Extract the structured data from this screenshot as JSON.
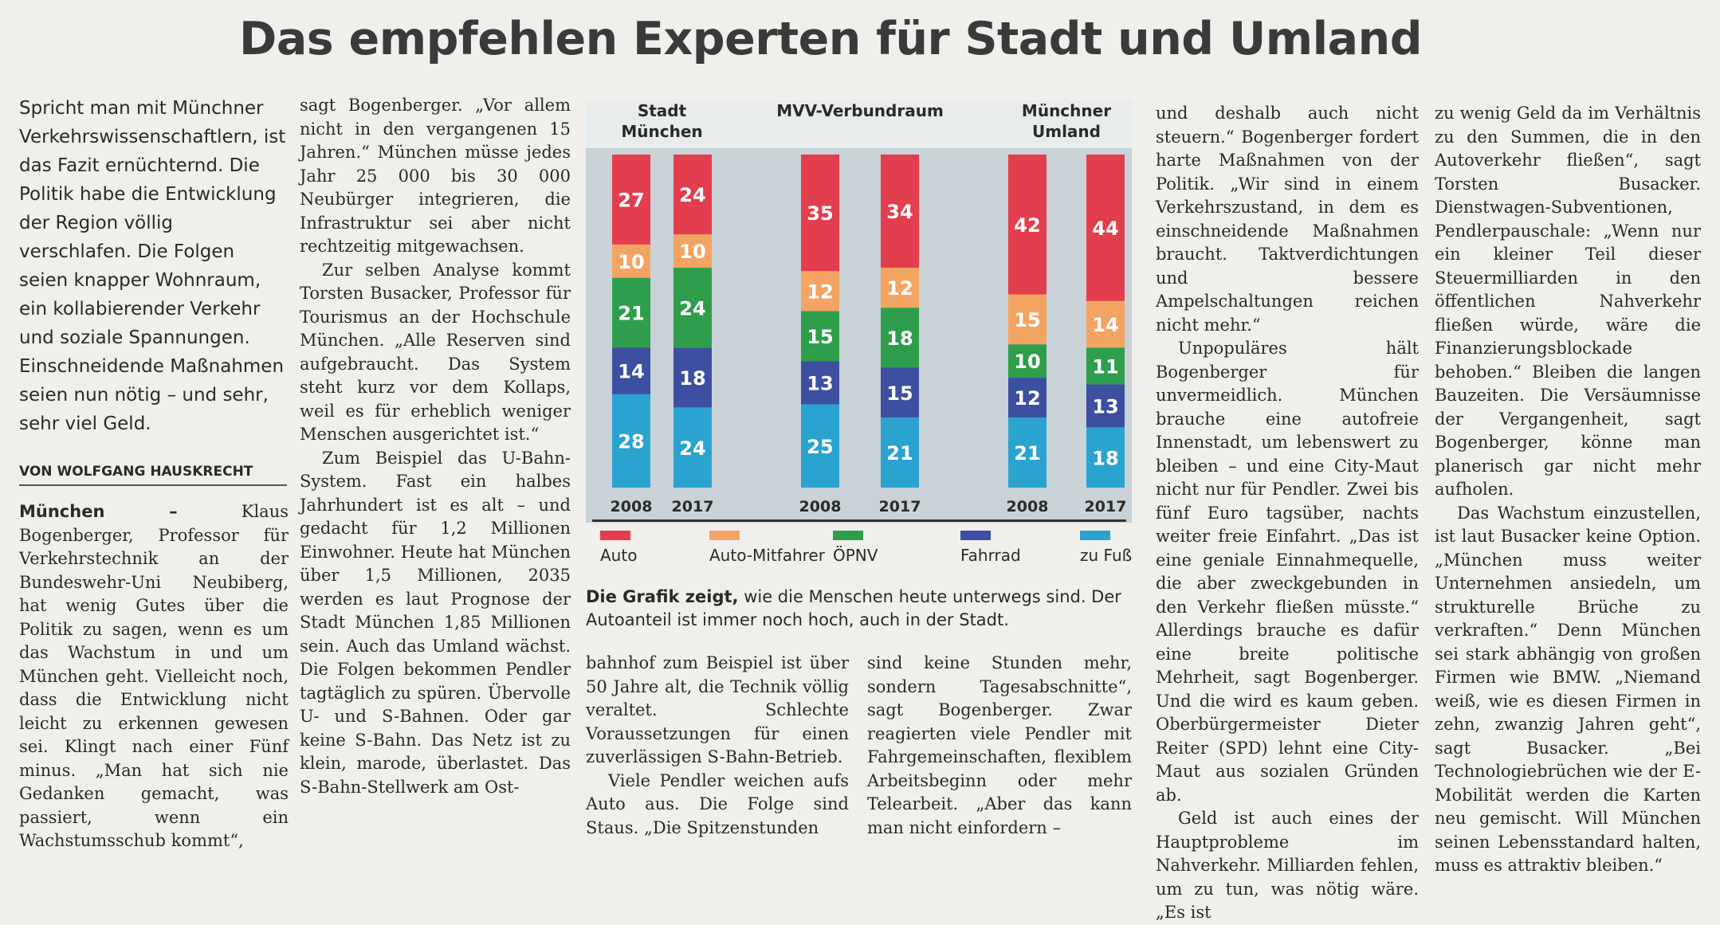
{
  "headline": "Das empfehlen Experten für Stadt und Umland",
  "teaser": "Spricht man mit Münchner Verkehrswissenschaftlern, ist das Fazit ernüchternd. Die Politik habe die Entwicklung der Region völlig verschlafen. Die Folgen seien knapper Wohnraum, ein kollabierender Verkehr und soziale Spannungen. Einschneidende Maßnahmen seien nun nötig – und sehr, sehr viel Geld.",
  "byline": "VON WOLFGANG HAUSKRECHT",
  "col1": {
    "dateline": "München –",
    "text": " Klaus Bogenberger, Professor für Verkehrstechnik an der Bundeswehr-Uni Neubiberg, hat wenig Gutes über die Politik zu sagen, wenn es um das Wachstum in und um München geht. Vielleicht noch, dass die Entwicklung nicht leicht zu erkennen gewesen sei. Klingt nach einer Fünf minus. „Man hat sich nie Gedanken gemacht, was passiert, wenn ein Wachstumsschub kommt“,"
  },
  "col2": [
    "sagt Bogenberger. „Vor allem nicht in den vergangenen 15 Jahren.“ München müsse jedes Jahr 25 000 bis 30 000 Neubürger integrieren, die Infrastruktur sei aber nicht rechtzeitig mitgewachsen.",
    "Zur selben Analyse kommt Torsten Busacker, Professor für Tourismus an der Hochschule München. „Alle Reserven sind aufgebraucht. Das System steht kurz vor dem Kollaps, weil es für erheblich weniger Menschen ausgerichtet ist.“",
    "Zum Beispiel das U-Bahn-System. Fast ein halbes Jahrhundert ist es alt – und gedacht für 1,2 Millionen Einwohner. Heute hat München über 1,5 Millionen, 2035 werden es laut Prognose der Stadt München 1,85 Millionen sein. Auch das Umland wächst. Die Folgen bekommen Pendler tagtäglich zu spüren. Übervolle U- und S-Bahnen. Oder gar keine S-Bahn. Das Netz ist zu klein, marode, überlastet. Das S-Bahn-Stellwerk am Ost-"
  ],
  "col3": [
    "bahnhof zum Beispiel ist über 50 Jahre alt, die Technik völlig veraltet. Schlechte Voraussetzungen für einen zuverlässigen S-Bahn-Betrieb.",
    "Viele Pendler weichen aufs Auto aus. Die Folge sind Staus. „Die Spitzenstunden"
  ],
  "col4": [
    "sind keine Stunden mehr, sondern Tagesabschnitte“, sagt Bogenberger. Zwar reagierten viele Pendler mit Fahrgemeinschaften, flexiblem Arbeitsbeginn oder mehr Telearbeit. „Aber das kann man nicht einfordern –"
  ],
  "col5": [
    "und deshalb auch nicht steuern.“ Bogenberger fordert harte Maßnahmen von der Politik. „Wir sind in einem Verkehrszustand, in dem es einschneidende Maßnahmen braucht. Taktverdichtungen und bessere Ampelschaltungen reichen nicht mehr.“",
    "Unpopuläres hält Bogenberger für unvermeidlich. München brauche eine autofreie Innenstadt, um lebenswert zu bleiben – und eine City-Maut nicht nur für Pendler. Zwei bis fünf Euro tagsüber, nachts weiter freie Einfahrt. „Das ist eine geniale Einnahmequelle, die aber zweckgebunden in den Verkehr fließen müsste.“ Allerdings brauche es dafür eine breite politische Mehrheit, sagt Bogenberger. Und die wird es kaum geben. Oberbürgermeister Dieter Reiter (SPD) lehnt eine City-Maut aus sozialen Gründen ab.",
    "Geld ist auch eines der Hauptprobleme im Nahverkehr. Milliarden fehlen, um zu tun, was nötig wäre. „Es ist"
  ],
  "col6": [
    "zu wenig Geld da im Verhältnis zu den Summen, die in den Autoverkehr fließen“, sagt Torsten Busacker. Dienstwagen-Subventionen, Pendlerpauschale: „Wenn nur ein kleiner Teil dieser Steuermilliarden in den öffentlichen Nahverkehr fließen würde, wäre die Finanzierungsblockade behoben.“ Bleiben die langen Bauzeiten. Die Versäumnisse der Vergangenheit, sagt Bogenberger, könne man planerisch gar nicht mehr aufholen.",
    "Das Wachstum einzustellen, ist laut Busacker keine Option. „München muss weiter Unternehmen ansiedeln, um strukturelle Brüche zu verkraften.“ Denn München sei stark abhängig von großen Firmen wie BMW. „Niemand weiß, wie es diesen Firmen in zehn, zwanzig Jahren geht“, sagt Busacker. „Bei Technologiebrüchen wie der E-Mobilität werden die Karten neu gemischt. Will München seinen Lebensstandard halten, muss es attraktiv bleiben.“"
  ],
  "caption": {
    "lead": "Die Grafik zeigt,",
    "text": " wie die Menschen heute unterwegs sind. Der Autoanteil ist immer noch hoch, auch in der Stadt."
  },
  "chart_data": {
    "type": "bar",
    "stacked": true,
    "groups": [
      {
        "label": "Stadt München",
        "years": [
          "2008",
          "2017"
        ]
      },
      {
        "label": "MVV-Verbundraum",
        "years": [
          "2008",
          "2017"
        ]
      },
      {
        "label": "Münchner Umland",
        "years": [
          "2008",
          "2017"
        ]
      }
    ],
    "categories": [
      "2008",
      "2017",
      "2008",
      "2017",
      "2008",
      "2017"
    ],
    "series": [
      {
        "name": "Auto",
        "color": "#e23e4e",
        "values": [
          27,
          24,
          35,
          34,
          42,
          44
        ]
      },
      {
        "name": "Auto-Mitfahrer",
        "color": "#f4a462",
        "values": [
          10,
          10,
          12,
          12,
          15,
          14
        ]
      },
      {
        "name": "ÖPNV",
        "color": "#2f9e4c",
        "values": [
          21,
          24,
          15,
          18,
          10,
          11
        ]
      },
      {
        "name": "Fahrrad",
        "color": "#3d4fa0",
        "values": [
          14,
          18,
          13,
          15,
          12,
          13
        ]
      },
      {
        "name": "zu Fuß",
        "color": "#2ba3cf",
        "values": [
          28,
          24,
          25,
          21,
          21,
          18
        ]
      }
    ],
    "ylim": [
      0,
      100
    ],
    "legend_position": "bottom"
  }
}
